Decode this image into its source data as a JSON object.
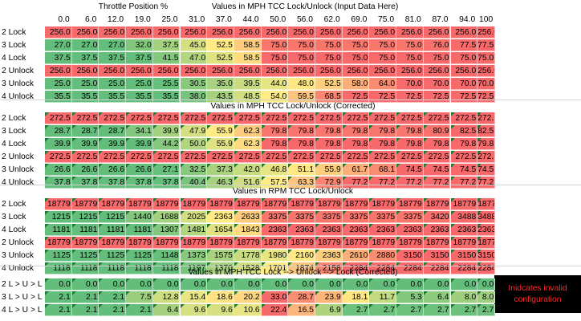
{
  "header": {
    "throttle_title": "Throttle Position %",
    "title_input": "Values in MPH    TCC Lock/Unlock (Input Data Here)",
    "throttle_values": [
      "0.0",
      "6.0",
      "12.0",
      "19.0",
      "25.0",
      "31.0",
      "37.0",
      "44.0",
      "50.0",
      "56.0",
      "62.0",
      "69.0",
      "75.0",
      "81.0",
      "87.0",
      "94.0",
      "100"
    ]
  },
  "sections": [
    {
      "title": "",
      "triangles": false,
      "rows": [
        {
          "label": "2 Lock",
          "values": [
            "256.0",
            "256.0",
            "256.0",
            "256.0",
            "256.0",
            "256.0",
            "256.0",
            "256.0",
            "256.0",
            "256.0",
            "256.0",
            "256.0",
            "256.0",
            "256.0",
            "256.0",
            "256.0",
            "256.0"
          ]
        },
        {
          "label": "3 Lock",
          "values": [
            "27.0",
            "27.0",
            "27.0",
            "32.0",
            "37.5",
            "45.0",
            "52.5",
            "58.5",
            "75.0",
            "75.0",
            "75.0",
            "75.0",
            "75.0",
            "75.0",
            "76.0",
            "77.5",
            "77.5"
          ]
        },
        {
          "label": "4 Lock",
          "values": [
            "37.5",
            "37.5",
            "37.5",
            "37.5",
            "41.5",
            "47.0",
            "52.5",
            "58.5",
            "75.0",
            "75.0",
            "75.0",
            "75.0",
            "75.0",
            "75.0",
            "75.0",
            "75.0",
            "75.0"
          ]
        },
        {
          "label": "2 Unlock",
          "values": [
            "256.0",
            "256.0",
            "256.0",
            "256.0",
            "256.0",
            "256.0",
            "256.0",
            "256.0",
            "256.0",
            "256.0",
            "256.0",
            "256.0",
            "256.0",
            "256.0",
            "256.0",
            "256.0",
            "256.0"
          ]
        },
        {
          "label": "3 Unlock",
          "values": [
            "25.0",
            "25.0",
            "25.0",
            "25.0",
            "25.5",
            "30.5",
            "35.0",
            "39.5",
            "44.0",
            "48.0",
            "52.5",
            "58.0",
            "64.0",
            "70.0",
            "70.0",
            "70.0",
            "70.0"
          ]
        },
        {
          "label": "4 Unlock",
          "values": [
            "35.5",
            "35.5",
            "35.5",
            "35.5",
            "35.5",
            "38.0",
            "43.5",
            "48.5",
            "54.0",
            "59.5",
            "68.5",
            "72.5",
            "72.5",
            "72.5",
            "72.5",
            "72.5",
            "72.5"
          ]
        }
      ]
    },
    {
      "title": "Values in MPH    TCC Lock/Unlock (Corrected)",
      "triangles": true,
      "rows": [
        {
          "label": "2 Lock",
          "values": [
            "272.5",
            "272.5",
            "272.5",
            "272.5",
            "272.5",
            "272.5",
            "272.5",
            "272.5",
            "272.5",
            "272.5",
            "272.5",
            "272.5",
            "272.5",
            "272.5",
            "272.5",
            "272.5",
            "272.5"
          ]
        },
        {
          "label": "3 Lock",
          "values": [
            "28.7",
            "28.7",
            "28.7",
            "34.1",
            "39.9",
            "47.9",
            "55.9",
            "62.3",
            "79.8",
            "79.8",
            "79.8",
            "79.8",
            "79.8",
            "79.8",
            "80.9",
            "82.5",
            "82.5"
          ]
        },
        {
          "label": "4 Lock",
          "values": [
            "39.9",
            "39.9",
            "39.9",
            "39.9",
            "44.2",
            "50.0",
            "55.9",
            "62.3",
            "79.8",
            "79.8",
            "79.8",
            "79.8",
            "79.8",
            "79.8",
            "79.8",
            "79.8",
            "79.8"
          ]
        },
        {
          "label": "2 Unlock",
          "values": [
            "272.5",
            "272.5",
            "272.5",
            "272.5",
            "272.5",
            "272.5",
            "272.5",
            "272.5",
            "272.5",
            "272.5",
            "272.5",
            "272.5",
            "272.5",
            "272.5",
            "272.5",
            "272.5",
            "272.5"
          ]
        },
        {
          "label": "3 Unlock",
          "values": [
            "26.6",
            "26.6",
            "26.6",
            "26.6",
            "27.1",
            "32.5",
            "37.3",
            "42.0",
            "46.8",
            "51.1",
            "55.9",
            "61.7",
            "68.1",
            "74.5",
            "74.5",
            "74.5",
            "74.5"
          ]
        },
        {
          "label": "4 Unlock",
          "values": [
            "37.8",
            "37.8",
            "37.8",
            "37.8",
            "37.8",
            "40.4",
            "46.3",
            "51.6",
            "57.5",
            "63.3",
            "72.9",
            "77.2",
            "77.2",
            "77.2",
            "77.2",
            "77.2",
            "77.2"
          ]
        }
      ]
    },
    {
      "title": "Values in RPM    TCC Lock/Unlock",
      "triangles": true,
      "rows": [
        {
          "label": "2 Lock",
          "values": [
            "18779",
            "18779",
            "18779",
            "18779",
            "18779",
            "18779",
            "18779",
            "18779",
            "18779",
            "18779",
            "18779",
            "18779",
            "18779",
            "18779",
            "18779",
            "18779",
            "18779"
          ]
        },
        {
          "label": "3 Lock",
          "values": [
            "1215",
            "1215",
            "1215",
            "1440",
            "1688",
            "2025",
            "2363",
            "2633",
            "3375",
            "3375",
            "3375",
            "3375",
            "3375",
            "3375",
            "3420",
            "3488",
            "3488"
          ]
        },
        {
          "label": "4 Lock",
          "values": [
            "1181",
            "1181",
            "1181",
            "1181",
            "1307",
            "1481",
            "1654",
            "1843",
            "2363",
            "2363",
            "2363",
            "2363",
            "2363",
            "2363",
            "2363",
            "2363",
            "2363"
          ]
        },
        {
          "label": "2 Unlock",
          "values": [
            "18779",
            "18779",
            "18779",
            "18779",
            "18779",
            "18779",
            "18779",
            "18779",
            "18779",
            "18779",
            "18779",
            "18779",
            "18779",
            "18779",
            "18779",
            "18779",
            "18779"
          ]
        },
        {
          "label": "3 Unlock",
          "values": [
            "1125",
            "1125",
            "1125",
            "1125",
            "1148",
            "1373",
            "1575",
            "1778",
            "1980",
            "2160",
            "2363",
            "2610",
            "2880",
            "3150",
            "3150",
            "3150",
            "3150"
          ]
        },
        {
          "label": "4 Unlock",
          "values": [
            "1118",
            "1118",
            "1118",
            "1118",
            "1118",
            "1197",
            "1370",
            "1528",
            "1701",
            "1874",
            "2158",
            "2284",
            "2284",
            "2284",
            "2284",
            "2284",
            "2284"
          ]
        }
      ]
    },
    {
      "title": "Values in MPH    TCC Lock --> Unlock --> Lock (Corrected)",
      "triangles": true,
      "rows": [
        {
          "label": "2 L > U > L",
          "values": [
            "0.0",
            "0.0",
            "0.0",
            "0.0",
            "0.0",
            "0.0",
            "0.0",
            "0.0",
            "0.0",
            "0.0",
            "0.0",
            "0.0",
            "0.0",
            "0.0",
            "0.0",
            "0.0",
            "0.0"
          ]
        },
        {
          "label": "3 L > U > L",
          "values": [
            "2.1",
            "2.1",
            "2.1",
            "7.5",
            "12.8",
            "15.4",
            "18.6",
            "20.2",
            "33.0",
            "28.7",
            "23.9",
            "18.1",
            "11.7",
            "5.3",
            "6.4",
            "8.0",
            "8.0"
          ]
        },
        {
          "label": "4 L > U > L",
          "values": [
            "2.1",
            "2.1",
            "2.1",
            "2.1",
            "6.4",
            "9.6",
            "9.6",
            "10.6",
            "22.4",
            "16.5",
            "6.9",
            "2.7",
            "2.7",
            "2.7",
            "2.7",
            "2.7",
            "2.7"
          ]
        }
      ]
    }
  ],
  "legend": {
    "line1": "Inidcates invalid",
    "line2": "configuration",
    "background": "#000000",
    "text_color": "#ff2b2b"
  },
  "colors": {
    "red": "#f8696b",
    "yellow": "#ffeb84",
    "green": "#63be7b"
  }
}
